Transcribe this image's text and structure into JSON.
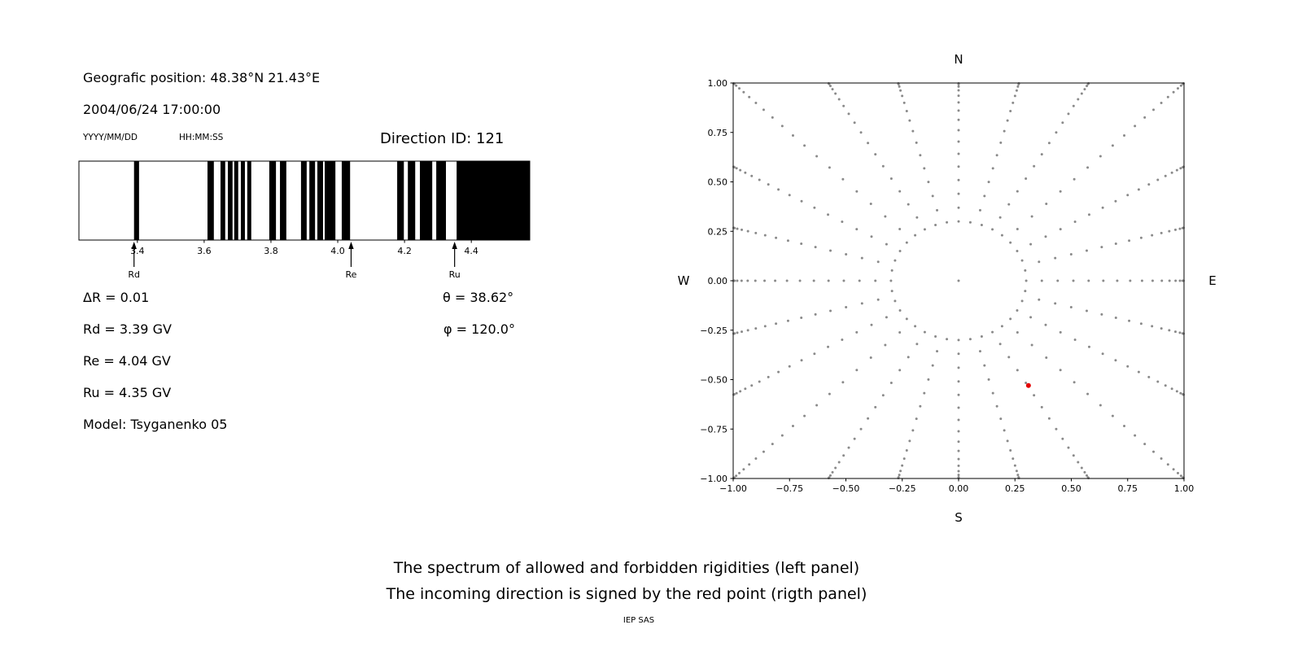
{
  "header": {
    "geographic_position": "Geografic position: 48.38°N 21.43°E",
    "datetime": "2004/06/24 17:00:00",
    "date_format": "YYYY/MM/DD",
    "time_format": "HH:MM:SS",
    "direction_id": "Direction ID: 121"
  },
  "parameters": {
    "delta_r": "ΔR = 0.01",
    "theta": "θ = 38.62°",
    "rd": "Rd = 3.39 GV",
    "phi": "φ = 120.0°",
    "re": "Re = 4.04 GV",
    "ru": "Ru = 4.35 GV",
    "model": "Model: Tsyganenko 05"
  },
  "captions": {
    "line1": "The spectrum of allowed and forbidden rigidities (left panel)",
    "line2": "The incoming direction is signed by the red point (rigth panel)",
    "credit": "IEP SAS"
  },
  "chart_data": [
    {
      "type": "bar",
      "name": "rigidity_spectrum",
      "x_range_gv": [
        3.225,
        4.575
      ],
      "tick_values": [
        3.4,
        3.6,
        3.8,
        4.0,
        4.2,
        4.4
      ],
      "tick_labels": [
        "3.4",
        "3.6",
        "3.8",
        "4.0",
        "4.2",
        "4.4"
      ],
      "bar_color": "#000000",
      "black_bands_gv": [
        [
          3.39,
          3.405
        ],
        [
          3.61,
          3.629
        ],
        [
          3.649,
          3.663
        ],
        [
          3.671,
          3.685
        ],
        [
          3.69,
          3.702
        ],
        [
          3.71,
          3.722
        ],
        [
          3.729,
          3.741
        ],
        [
          3.795,
          3.815
        ],
        [
          3.827,
          3.846
        ],
        [
          3.89,
          3.907
        ],
        [
          3.915,
          3.932
        ],
        [
          3.939,
          3.956
        ],
        [
          3.961,
          3.993
        ],
        [
          4.012,
          4.037
        ],
        [
          4.178,
          4.198
        ],
        [
          4.21,
          4.232
        ],
        [
          4.246,
          4.283
        ],
        [
          4.295,
          4.324
        ],
        [
          4.356,
          4.575
        ]
      ],
      "cutoff_markers": [
        {
          "label": "Rd",
          "value_gv": 3.39
        },
        {
          "label": "Re",
          "value_gv": 4.04
        },
        {
          "label": "Ru",
          "value_gv": 4.35
        }
      ]
    },
    {
      "type": "scatter",
      "name": "incoming_direction_map",
      "xlim": [
        -1,
        1
      ],
      "ylim": [
        -1,
        1
      ],
      "xtick_values": [
        -1,
        -0.75,
        -0.5,
        -0.25,
        0,
        0.25,
        0.5,
        0.75,
        1
      ],
      "xtick_labels": [
        "−1.00",
        "−0.75",
        "−0.50",
        "−0.25",
        "0.00",
        "0.25",
        "0.50",
        "0.75",
        "1.00"
      ],
      "ytick_labels": [
        "−1.00",
        "−0.75",
        "−0.50",
        "−0.25",
        "0.00",
        "0.25",
        "0.50",
        "0.75",
        "1.00"
      ],
      "compass_labels": {
        "top": "N",
        "right": "E",
        "bottom": "S",
        "left": "W"
      },
      "red_point": {
        "x": 0.31,
        "y": -0.53,
        "color": "#e50000"
      },
      "gray_grid": {
        "color": "#8a8a8a",
        "center_dot": true,
        "ring": {
          "radius": 0.3,
          "count": 36
        },
        "spokes": {
          "count": 24,
          "angles_deg_step": 15,
          "r_start": 0.37,
          "clip": "square",
          "spacing": "dots cluster toward outer boundary"
        }
      }
    }
  ]
}
